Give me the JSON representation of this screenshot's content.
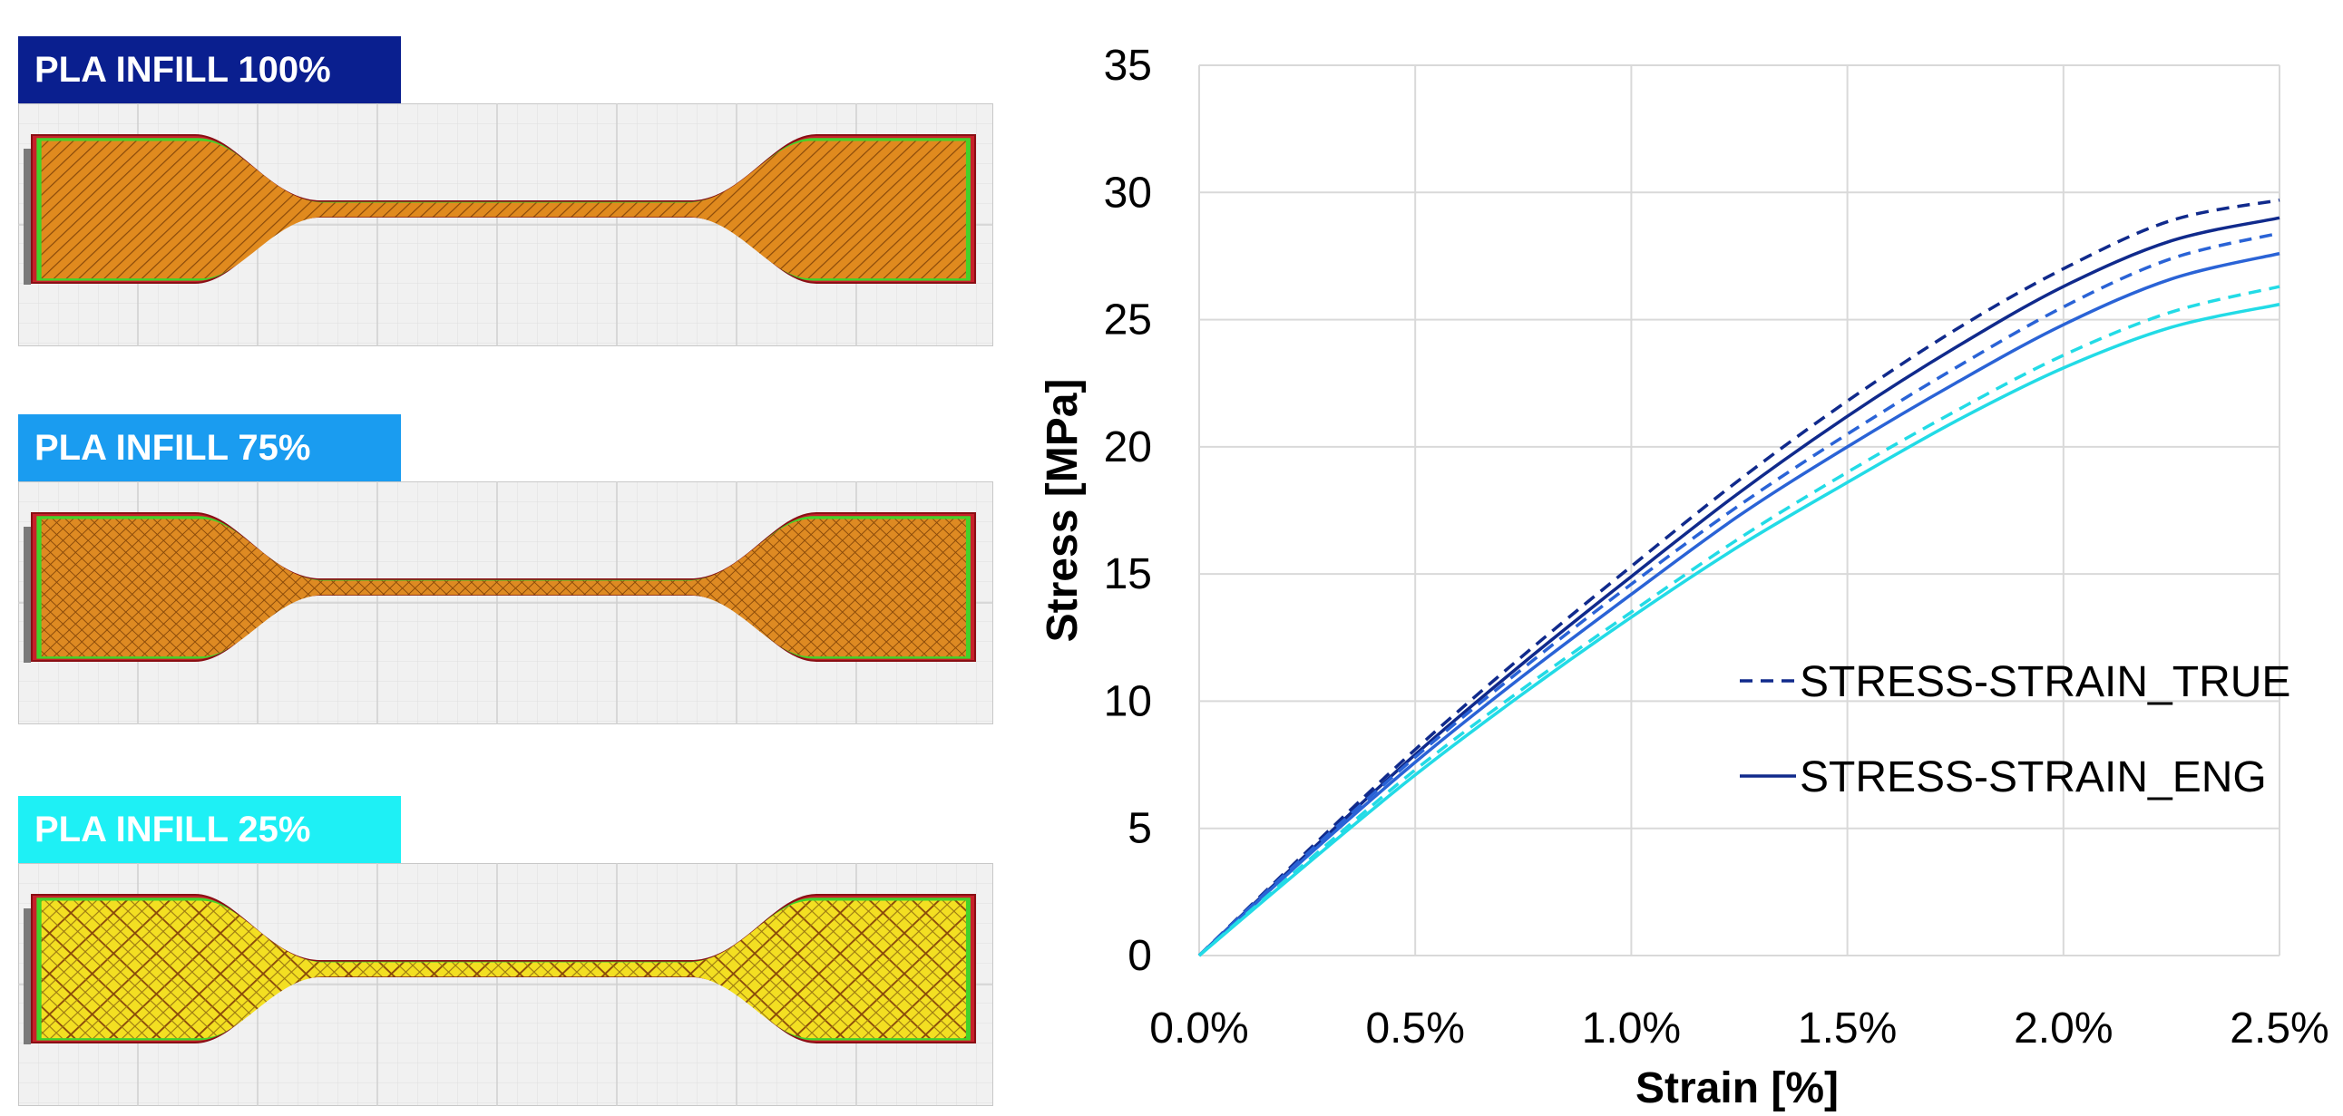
{
  "specimens": [
    {
      "label": "PLA INFILL 100%",
      "label_color": "#0a1f8f",
      "pattern": "dense-diagonal",
      "fill": "#e08a1e",
      "line": "#8a4a0a"
    },
    {
      "label": "PLA INFILL 75%",
      "label_color": "#1a9cf0",
      "pattern": "diagonal-crosshatch",
      "fill": "#de8a22",
      "line": "#8a4a0a"
    },
    {
      "label": "PLA INFILL 25%",
      "label_color": "#1ef0f5",
      "pattern": "lattice",
      "fill": "#e6c21e",
      "line": "#8a4a0a"
    }
  ],
  "chart_data": {
    "type": "line",
    "xlabel": "Strain [%]",
    "ylabel": "Stress [MPa]",
    "xlim": [
      0,
      2.5
    ],
    "ylim": [
      0,
      35
    ],
    "x_ticks": [
      "0.0%",
      "0.5%",
      "1.0%",
      "1.5%",
      "2.0%",
      "2.5%"
    ],
    "y_ticks": [
      "0",
      "5",
      "10",
      "15",
      "20",
      "25",
      "30",
      "35"
    ],
    "grid": true,
    "legend_position": "right",
    "legend": [
      {
        "label": "STRESS-STRAIN_TRUE",
        "style": "dashed"
      },
      {
        "label": "STRESS-STRAIN_ENG",
        "style": "solid"
      }
    ],
    "x": [
      0,
      0.25,
      0.5,
      0.75,
      1.0,
      1.25,
      1.5,
      1.75,
      2.0,
      2.25,
      2.5
    ],
    "series": [
      {
        "style": "dashed",
        "color": "#102a8c",
        "values": [
          0,
          4.1,
          8.1,
          11.8,
          15.3,
          18.7,
          21.8,
          24.6,
          27.0,
          28.9,
          29.7
        ]
      },
      {
        "style": "solid",
        "color": "#102a8c",
        "values": [
          0,
          4.0,
          7.9,
          11.5,
          14.9,
          18.2,
          21.2,
          23.9,
          26.3,
          28.1,
          29.0
        ]
      },
      {
        "style": "dashed",
        "color": "#2a63d6",
        "values": [
          0,
          4.0,
          7.8,
          11.3,
          14.6,
          17.7,
          20.5,
          23.1,
          25.5,
          27.4,
          28.4
        ]
      },
      {
        "style": "solid",
        "color": "#2a63d6",
        "values": [
          0,
          3.9,
          7.6,
          11.0,
          14.2,
          17.3,
          20.0,
          22.5,
          24.8,
          26.6,
          27.6
        ]
      },
      {
        "style": "dashed",
        "color": "#22dbe6",
        "values": [
          0,
          3.7,
          7.3,
          10.5,
          13.5,
          16.4,
          19.0,
          21.4,
          23.6,
          25.3,
          26.3
        ]
      },
      {
        "style": "solid",
        "color": "#22dbe6",
        "values": [
          0,
          3.6,
          7.1,
          10.3,
          13.3,
          16.1,
          18.6,
          21.0,
          23.1,
          24.7,
          25.6
        ]
      }
    ]
  }
}
